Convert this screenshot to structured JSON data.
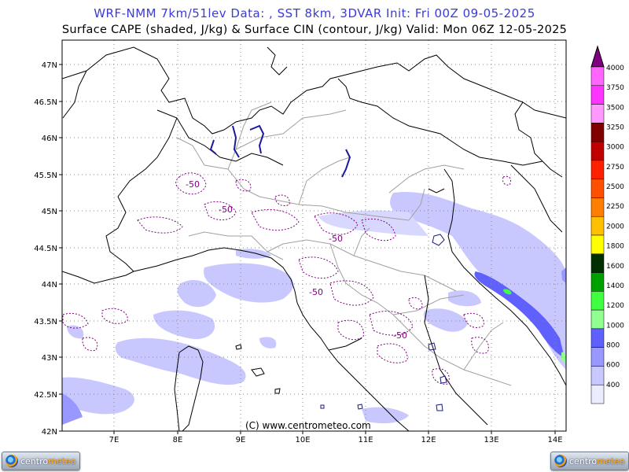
{
  "header": {
    "title_line1": "WRF-NMM 7km/51lev   Data: , SST 8km, 3DVAR   Init: Fri 00Z 09-05-2025",
    "title_line2": "Surface CAPE (shaded, J/kg) & Surface CIN (contour, J/kg)   Valid: Mon 06Z 12-05-2025"
  },
  "map": {
    "lat_labels": [
      "47N",
      "46.5N",
      "46N",
      "45.5N",
      "45N",
      "44.5N",
      "44N",
      "43.5N",
      "43N",
      "42.5N",
      "42N"
    ],
    "lon_labels": [
      "7E",
      "8E",
      "9E",
      "10E",
      "11E",
      "12E",
      "13E",
      "14E"
    ],
    "contour_labels": [
      "-50",
      "-50",
      "-50",
      "-50",
      "-50"
    ],
    "copyright": "(C) www.centrometeo.com",
    "colors": {
      "cin_contour": "#800080",
      "lakes": "#1a1aa0",
      "grid": "#8a8a8a"
    }
  },
  "colorbar": {
    "labels": [
      "4000",
      "3750",
      "3500",
      "3250",
      "3000",
      "2750",
      "2500",
      "2250",
      "2000",
      "1800",
      "1600",
      "1400",
      "1200",
      "1000",
      "800",
      "600",
      "400"
    ],
    "colors": [
      "#ff66ff",
      "#ff33ff",
      "#ff99ff",
      "#800000",
      "#c00000",
      "#ff2000",
      "#ff5000",
      "#ff8000",
      "#ffc000",
      "#ffff00",
      "#003000",
      "#00a000",
      "#40ff40",
      "#90ff90",
      "#6060ff",
      "#9898ff",
      "#c8c8ff",
      "#ececff"
    ],
    "top_color": "#800080"
  },
  "logos": {
    "text_a": "centro",
    "text_b": "meteo"
  }
}
